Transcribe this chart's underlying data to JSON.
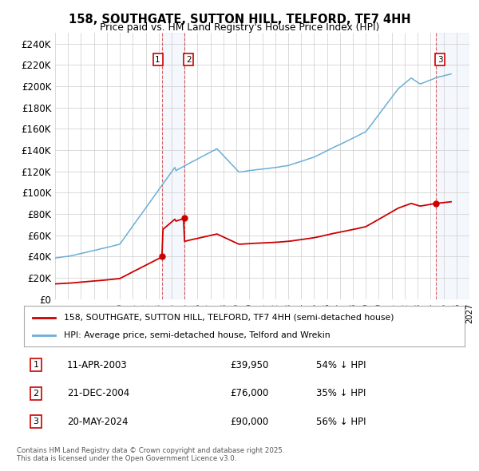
{
  "title": "158, SOUTHGATE, SUTTON HILL, TELFORD, TF7 4HH",
  "subtitle": "Price paid vs. HM Land Registry's House Price Index (HPI)",
  "ylim": [
    0,
    250000
  ],
  "yticks": [
    0,
    20000,
    40000,
    60000,
    80000,
    100000,
    120000,
    140000,
    160000,
    180000,
    200000,
    220000,
    240000
  ],
  "background_color": "#ffffff",
  "grid_color": "#cccccc",
  "hpi_color": "#6baed6",
  "price_color": "#cc0000",
  "transactions": [
    {
      "id": 1,
      "date": "11-APR-2003",
      "x": 2003.28,
      "price": 39950,
      "pct": "54% ↓ HPI"
    },
    {
      "id": 2,
      "date": "21-DEC-2004",
      "x": 2004.97,
      "price": 76000,
      "pct": "35% ↓ HPI"
    },
    {
      "id": 3,
      "date": "20-MAY-2024",
      "x": 2024.38,
      "price": 90000,
      "pct": "56% ↓ HPI"
    }
  ],
  "legend_label_red": "158, SOUTHGATE, SUTTON HILL, TELFORD, TF7 4HH (semi-detached house)",
  "legend_label_blue": "HPI: Average price, semi-detached house, Telford and Wrekin",
  "footnote": "Contains HM Land Registry data © Crown copyright and database right 2025.\nThis data is licensed under the Open Government Licence v3.0.",
  "xmin": 1995,
  "xmax": 2027
}
